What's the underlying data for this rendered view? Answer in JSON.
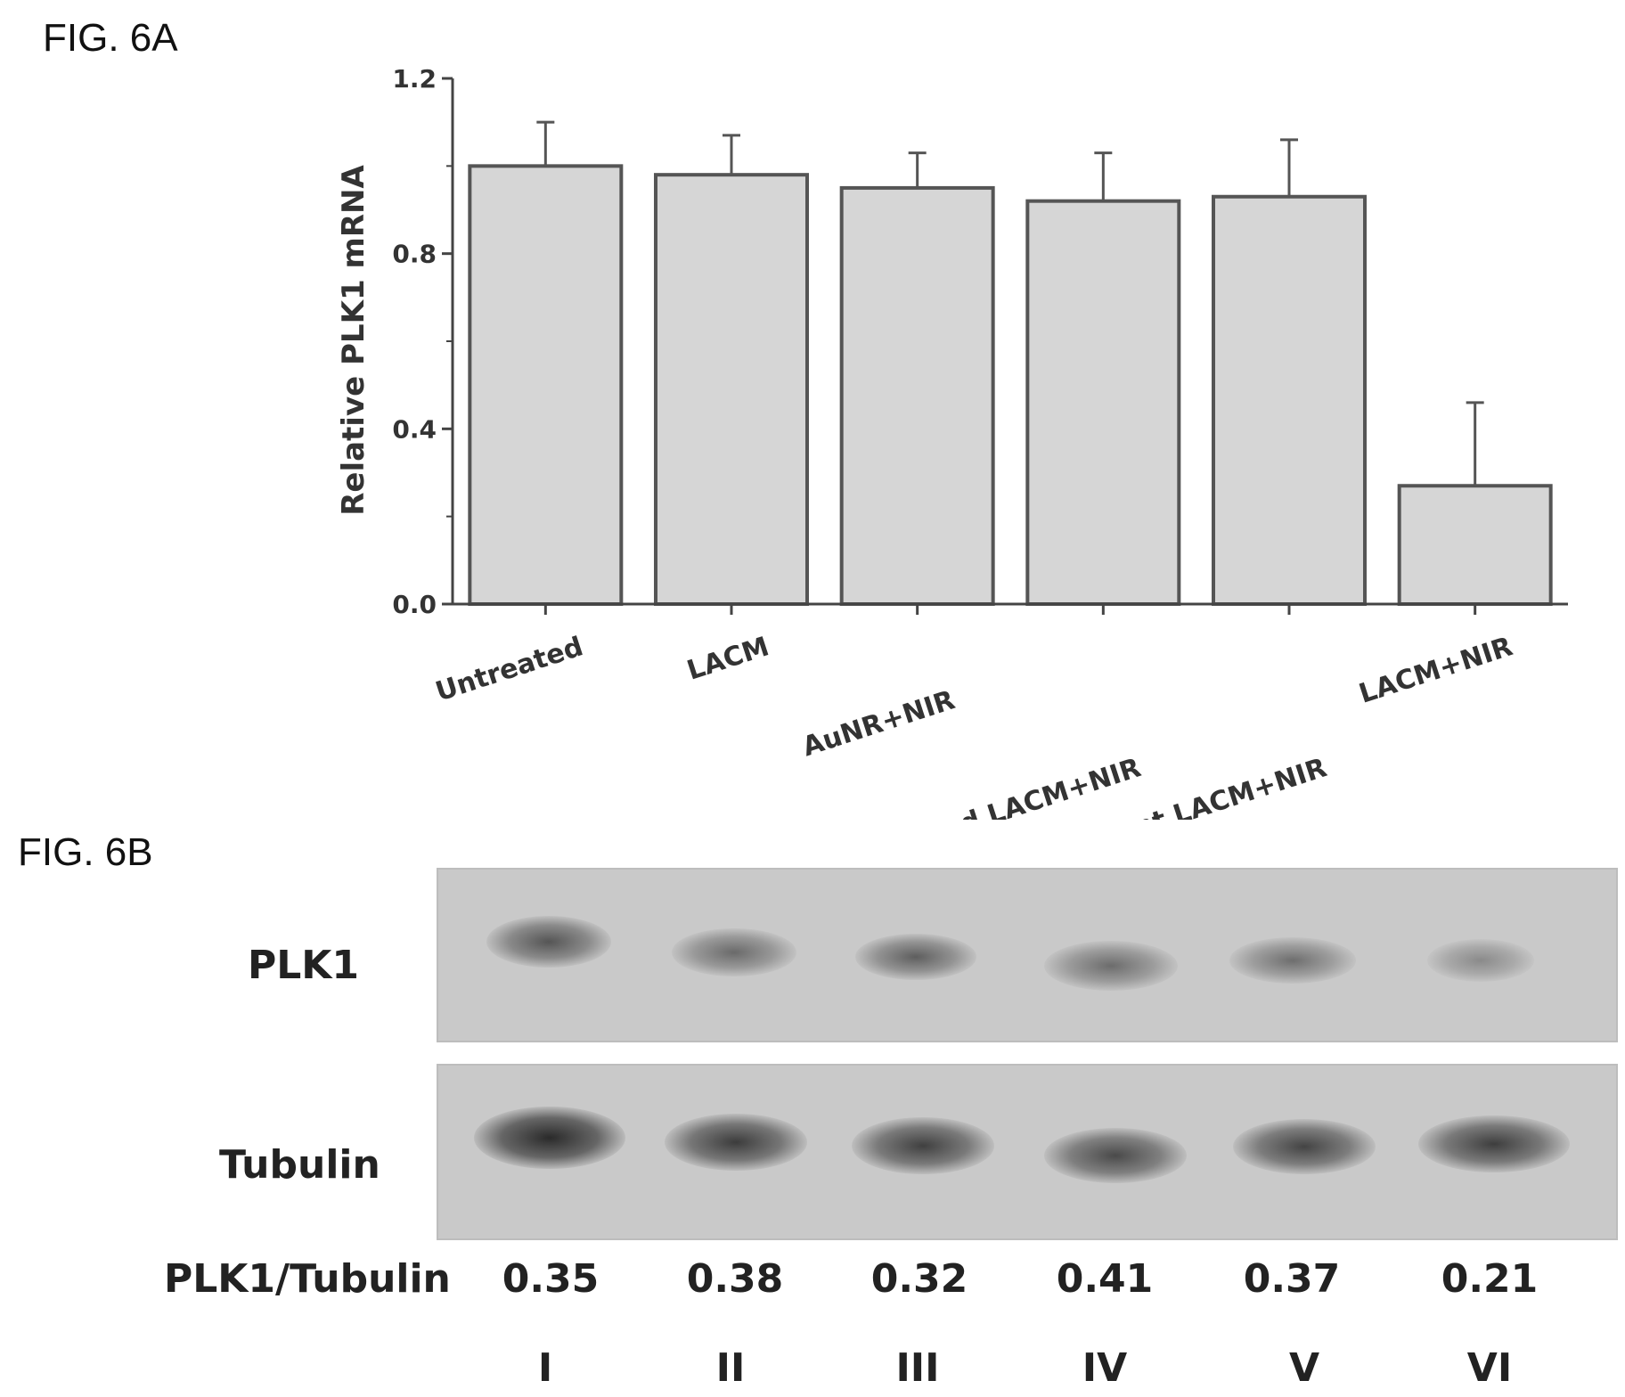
{
  "figure_a": {
    "label": "FIG. 6A"
  },
  "figure_b": {
    "label": "FIG. 6B",
    "row_labels": {
      "plk1": "PLK1",
      "tubulin": "Tubulin",
      "ratio": "PLK1/Tubulin"
    },
    "ratios": [
      "0.35",
      "0.38",
      "0.32",
      "0.41",
      "0.37",
      "0.21"
    ],
    "lanes": [
      "I",
      "II",
      "III",
      "IV",
      "V",
      "VI"
    ]
  },
  "chart_data": {
    "type": "bar",
    "title": "",
    "xlabel": "",
    "ylabel": "Relative PLK1 mRNA",
    "ylim": [
      0,
      1.2
    ],
    "yticks": [
      "0.0",
      "0.4",
      "0.8",
      "1.2"
    ],
    "categories": [
      "Untreated",
      "LACM",
      "AuNR+NIR",
      "Scrambled LACM+NIR",
      "mutant LACM+NIR",
      "LACM+NIR"
    ],
    "values": [
      1.0,
      0.98,
      0.95,
      0.92,
      0.93,
      0.27
    ],
    "error": [
      0.1,
      0.09,
      0.08,
      0.11,
      0.13,
      0.19
    ],
    "grid": false,
    "colors": {
      "bar_fill": "#d6d6d6",
      "bar_stroke": "#555555",
      "axis": "#444444"
    }
  }
}
